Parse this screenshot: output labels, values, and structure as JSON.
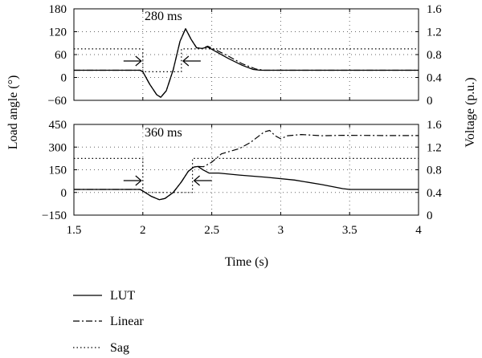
{
  "chart_data": [
    {
      "type": "line",
      "panel": "top",
      "xlim": [
        1.5,
        4
      ],
      "ylim_left": [
        -60,
        180
      ],
      "ylim_right": [
        0,
        1.6
      ],
      "left_ticks": [
        "180",
        "120",
        "60",
        "0",
        "−60"
      ],
      "right_ticks": [
        "1.6",
        "1.2",
        "0.8",
        "0.4",
        "0"
      ],
      "annotation": "280 ms",
      "grid": "dotted",
      "series": [
        {
          "name": "LUT",
          "axis": "left",
          "points": [
            [
              1.5,
              19
            ],
            [
              1.98,
              19
            ],
            [
              2.0,
              15
            ],
            [
              2.05,
              -18
            ],
            [
              2.1,
              -45
            ],
            [
              2.13,
              -52
            ],
            [
              2.17,
              -35
            ],
            [
              2.22,
              20
            ],
            [
              2.27,
              95
            ],
            [
              2.31,
              128
            ],
            [
              2.35,
              100
            ],
            [
              2.39,
              78
            ],
            [
              2.43,
              76
            ],
            [
              2.47,
              80
            ],
            [
              2.52,
              70
            ],
            [
              2.62,
              50
            ],
            [
              2.72,
              32
            ],
            [
              2.8,
              21
            ],
            [
              2.85,
              19
            ],
            [
              4.0,
              19
            ]
          ]
        },
        {
          "name": "Linear",
          "axis": "left",
          "points": [
            [
              1.5,
              19
            ],
            [
              1.98,
              19
            ],
            [
              2.0,
              15
            ],
            [
              2.05,
              -18
            ],
            [
              2.1,
              -45
            ],
            [
              2.13,
              -52
            ],
            [
              2.17,
              -35
            ],
            [
              2.22,
              20
            ],
            [
              2.27,
              95
            ],
            [
              2.31,
              128
            ],
            [
              2.35,
              100
            ],
            [
              2.39,
              78
            ],
            [
              2.43,
              76
            ],
            [
              2.47,
              82
            ],
            [
              2.52,
              74
            ],
            [
              2.62,
              56
            ],
            [
              2.72,
              36
            ],
            [
              2.82,
              22
            ],
            [
              2.88,
              19
            ],
            [
              4.0,
              19
            ]
          ]
        },
        {
          "name": "Sag",
          "axis": "right",
          "points": [
            [
              1.5,
              0.9
            ],
            [
              2.0,
              0.9
            ],
            [
              2.0,
              0.5
            ],
            [
              2.28,
              0.5
            ],
            [
              2.28,
              0.9
            ],
            [
              4.0,
              0.9
            ]
          ]
        }
      ]
    },
    {
      "type": "line",
      "panel": "bottom",
      "xlim": [
        1.5,
        4
      ],
      "ylim_left": [
        -150,
        450
      ],
      "ylim_right": [
        0,
        1.6
      ],
      "left_ticks": [
        "450",
        "300",
        "150",
        "0",
        "−150"
      ],
      "right_ticks": [
        "1.6",
        "1.2",
        "0.8",
        "0.4",
        "0"
      ],
      "x_ticks": [
        "1.5",
        "2",
        "2.5",
        "3",
        "3.5",
        "4"
      ],
      "xlabel": "Time (s)",
      "ylabel_left": "Load angle (°)",
      "ylabel_right": "Voltage (p.u.)",
      "annotation": "360 ms",
      "grid": "dotted",
      "series": [
        {
          "name": "LUT",
          "axis": "left",
          "points": [
            [
              1.5,
              20
            ],
            [
              1.98,
              20
            ],
            [
              2.0,
              10
            ],
            [
              2.06,
              -25
            ],
            [
              2.12,
              -48
            ],
            [
              2.16,
              -40
            ],
            [
              2.22,
              0
            ],
            [
              2.28,
              70
            ],
            [
              2.33,
              140
            ],
            [
              2.37,
              168
            ],
            [
              2.4,
              172
            ],
            [
              2.44,
              148
            ],
            [
              2.48,
              128
            ],
            [
              2.55,
              128
            ],
            [
              2.7,
              115
            ],
            [
              2.9,
              100
            ],
            [
              3.1,
              82
            ],
            [
              3.3,
              52
            ],
            [
              3.45,
              25
            ],
            [
              3.5,
              20
            ],
            [
              4.0,
              20
            ]
          ]
        },
        {
          "name": "Linear",
          "axis": "left",
          "points": [
            [
              1.5,
              20
            ],
            [
              1.98,
              20
            ],
            [
              2.0,
              10
            ],
            [
              2.06,
              -25
            ],
            [
              2.12,
              -48
            ],
            [
              2.16,
              -40
            ],
            [
              2.22,
              0
            ],
            [
              2.28,
              70
            ],
            [
              2.33,
              140
            ],
            [
              2.37,
              168
            ],
            [
              2.4,
              172
            ],
            [
              2.44,
              170
            ],
            [
              2.5,
              200
            ],
            [
              2.57,
              255
            ],
            [
              2.7,
              290
            ],
            [
              2.78,
              330
            ],
            [
              2.88,
              400
            ],
            [
              2.92,
              410
            ],
            [
              2.96,
              375
            ],
            [
              3.0,
              355
            ],
            [
              3.05,
              375
            ],
            [
              3.15,
              383
            ],
            [
              3.3,
              375
            ],
            [
              3.45,
              378
            ],
            [
              3.6,
              377
            ],
            [
              3.8,
              376
            ],
            [
              4.0,
              376
            ]
          ]
        },
        {
          "name": "Sag",
          "axis": "right",
          "points": [
            [
              1.5,
              1.0
            ],
            [
              2.0,
              1.0
            ],
            [
              2.0,
              0.4
            ],
            [
              2.36,
              0.4
            ],
            [
              2.36,
              1.0
            ],
            [
              4.0,
              1.0
            ]
          ]
        }
      ]
    }
  ],
  "legend": [
    {
      "label": "LUT",
      "style": "solid"
    },
    {
      "label": "Linear",
      "style": "dashdot"
    },
    {
      "label": "Sag",
      "style": "dotted"
    }
  ]
}
